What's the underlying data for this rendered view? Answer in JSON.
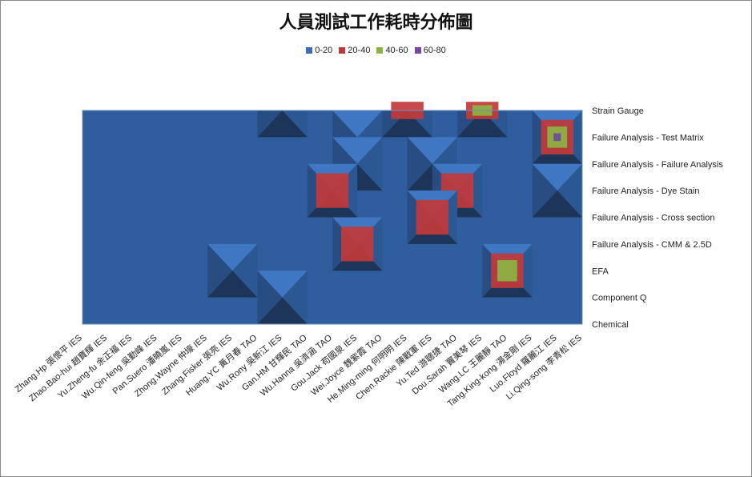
{
  "chart_data": {
    "type": "surface",
    "title": "人員測試工作耗時分佈圖",
    "legend_position": "top",
    "series": [
      {
        "name": "0-20",
        "color": "#3a6db8"
      },
      {
        "name": "20-40",
        "color": "#c0393b"
      },
      {
        "name": "40-60",
        "color": "#8db443"
      },
      {
        "name": "60-80",
        "color": "#6f4a9e"
      }
    ],
    "rows": [
      "Strain Gauge",
      "Failure Analysis - Test Matrix",
      "Failure Analysis - Failure Analysis",
      "Failure Analysis - Dye Stain",
      "Failure Analysis - Cross section",
      "Failure Analysis - CMM & 2.5D",
      "EFA",
      "Component Q",
      "Chemical"
    ],
    "columns": [
      "Zhang.Hp 張懷平 IES",
      "Zhao.Bao-hui 趙寶輝 IES",
      "Yu.Zheng-fu 余正福 IES",
      "Wu.Qin-feng 吳勤峰 IES",
      "Pan.Suero 潘曉嵐 IES",
      "Zhong.Wayne 仲壕 IES",
      "Zhang.Fisker 張亮 IES",
      "Huang.YC 黃月春 TAO",
      "Wu.Rony 吳新江 IES",
      "Gan.HM 甘輝民 TAO",
      "Wu.Hanna 吳濟涵 TAO",
      "Gou.Jack 苟國泉 IES",
      "Wei.Joyce 魏紫霞 TAO",
      "He.Ming-ming 何明明 IES",
      "Chen.Rackie 陳戰軍 IES",
      "Yu.Ted 游聰捷 TAO",
      "Dou.Sarah 竇美琴 IES",
      "Wang.LC 王麗靜 TAO",
      "Tang.King-kong 湯金剛 IES",
      "Luo.Floyd 羅麗江 IES",
      "Li.Qing-song 李青松 IES"
    ],
    "values": [
      [
        0,
        0,
        0,
        0,
        0,
        0,
        0,
        0,
        0,
        0,
        0,
        0,
        0,
        0,
        0,
        0,
        0,
        0,
        0,
        0,
        0
      ],
      [
        0,
        0,
        0,
        0,
        0,
        0,
        0,
        0,
        0,
        0,
        0,
        0,
        0,
        0,
        0,
        0,
        0,
        0,
        0,
        0,
        0
      ],
      [
        0,
        0,
        0,
        0,
        0,
        0,
        0,
        0,
        0,
        0,
        0,
        0,
        0,
        0,
        0,
        0,
        0,
        0,
        0,
        0,
        0
      ],
      [
        0,
        0,
        0,
        0,
        0,
        0,
        0,
        0,
        0,
        0,
        0,
        0,
        0,
        0,
        0,
        0,
        0,
        0,
        0,
        0,
        0
      ],
      [
        0,
        0,
        0,
        0,
        0,
        0,
        0,
        0,
        0,
        0,
        0,
        0,
        0,
        0,
        0,
        0,
        0,
        0,
        0,
        0,
        0
      ],
      [
        0,
        0,
        0,
        0,
        0,
        0,
        0,
        0,
        0,
        0,
        0,
        0,
        0,
        0,
        0,
        0,
        0,
        0,
        0,
        0,
        0
      ],
      [
        0,
        0,
        0,
        0,
        0,
        0,
        0,
        0,
        0,
        0,
        0,
        0,
        0,
        0,
        0,
        0,
        0,
        0,
        0,
        0,
        0
      ],
      [
        0,
        0,
        0,
        0,
        0,
        0,
        0,
        0,
        0,
        0,
        0,
        0,
        0,
        0,
        0,
        0,
        0,
        0,
        0,
        0,
        0
      ],
      [
        0,
        0,
        0,
        0,
        0,
        0,
        0,
        0,
        0,
        0,
        0,
        0,
        0,
        0,
        0,
        0,
        0,
        0,
        0,
        0,
        0
      ]
    ],
    "peaks": [
      {
        "row": 0,
        "col": 8,
        "value": 10
      },
      {
        "row": 0,
        "col": 13,
        "value": 24
      },
      {
        "row": 0,
        "col": 16,
        "value": 45
      },
      {
        "row": 1,
        "col": 19,
        "value": 70
      },
      {
        "row": 1,
        "col": 11,
        "value": 12
      },
      {
        "row": 2,
        "col": 14,
        "value": 15
      },
      {
        "row": 2,
        "col": 11,
        "value": 14
      },
      {
        "row": 3,
        "col": 15,
        "value": 30
      },
      {
        "row": 3,
        "col": 10,
        "value": 21
      },
      {
        "row": 3,
        "col": 19,
        "value": 10
      },
      {
        "row": 4,
        "col": 14,
        "value": 38
      },
      {
        "row": 5,
        "col": 11,
        "value": 25
      },
      {
        "row": 6,
        "col": 17,
        "value": 55
      },
      {
        "row": 6,
        "col": 6,
        "value": 8
      },
      {
        "row": 7,
        "col": 8,
        "value": 8
      }
    ]
  }
}
